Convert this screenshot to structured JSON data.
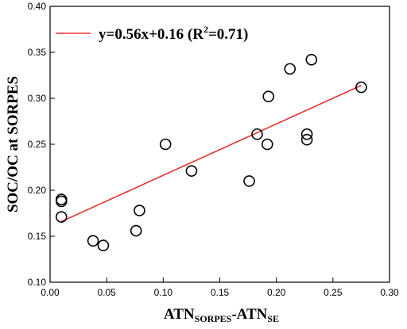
{
  "chart_data": {
    "type": "scatter",
    "xlabel_main": "ATN",
    "xlabel_sub1": "SORPES",
    "xlabel_mid": "-ATN",
    "xlabel_sub2": "SE",
    "ylabel": "SOC/OC at SORPES",
    "xlim": [
      0,
      0.3
    ],
    "ylim": [
      0.1,
      0.4
    ],
    "x_ticks": [
      "0.00",
      "0.05",
      "0.10",
      "0.15",
      "0.20",
      "0.25",
      "0.30"
    ],
    "y_ticks": [
      "0.10",
      "0.15",
      "0.20",
      "0.25",
      "0.30",
      "0.35",
      "0.40"
    ],
    "legend_position": "top-left",
    "legend": {
      "eq": "y=0.56x+0.16 (R",
      "sup": "2",
      "tail": "=0.71)"
    },
    "points": [
      {
        "x": 0.01,
        "y": 0.19
      },
      {
        "x": 0.01,
        "y": 0.188
      },
      {
        "x": 0.01,
        "y": 0.171
      },
      {
        "x": 0.038,
        "y": 0.145
      },
      {
        "x": 0.047,
        "y": 0.14
      },
      {
        "x": 0.076,
        "y": 0.156
      },
      {
        "x": 0.079,
        "y": 0.178
      },
      {
        "x": 0.102,
        "y": 0.25
      },
      {
        "x": 0.125,
        "y": 0.221
      },
      {
        "x": 0.176,
        "y": 0.21
      },
      {
        "x": 0.183,
        "y": 0.261
      },
      {
        "x": 0.192,
        "y": 0.25
      },
      {
        "x": 0.193,
        "y": 0.302
      },
      {
        "x": 0.212,
        "y": 0.332
      },
      {
        "x": 0.227,
        "y": 0.261
      },
      {
        "x": 0.227,
        "y": 0.255
      },
      {
        "x": 0.231,
        "y": 0.342
      },
      {
        "x": 0.275,
        "y": 0.312
      }
    ],
    "fit_line": {
      "x": [
        0.01,
        0.275
      ],
      "y": [
        0.166,
        0.314
      ]
    },
    "colors": {
      "points": "#000000",
      "fit": "#e8312f"
    }
  }
}
